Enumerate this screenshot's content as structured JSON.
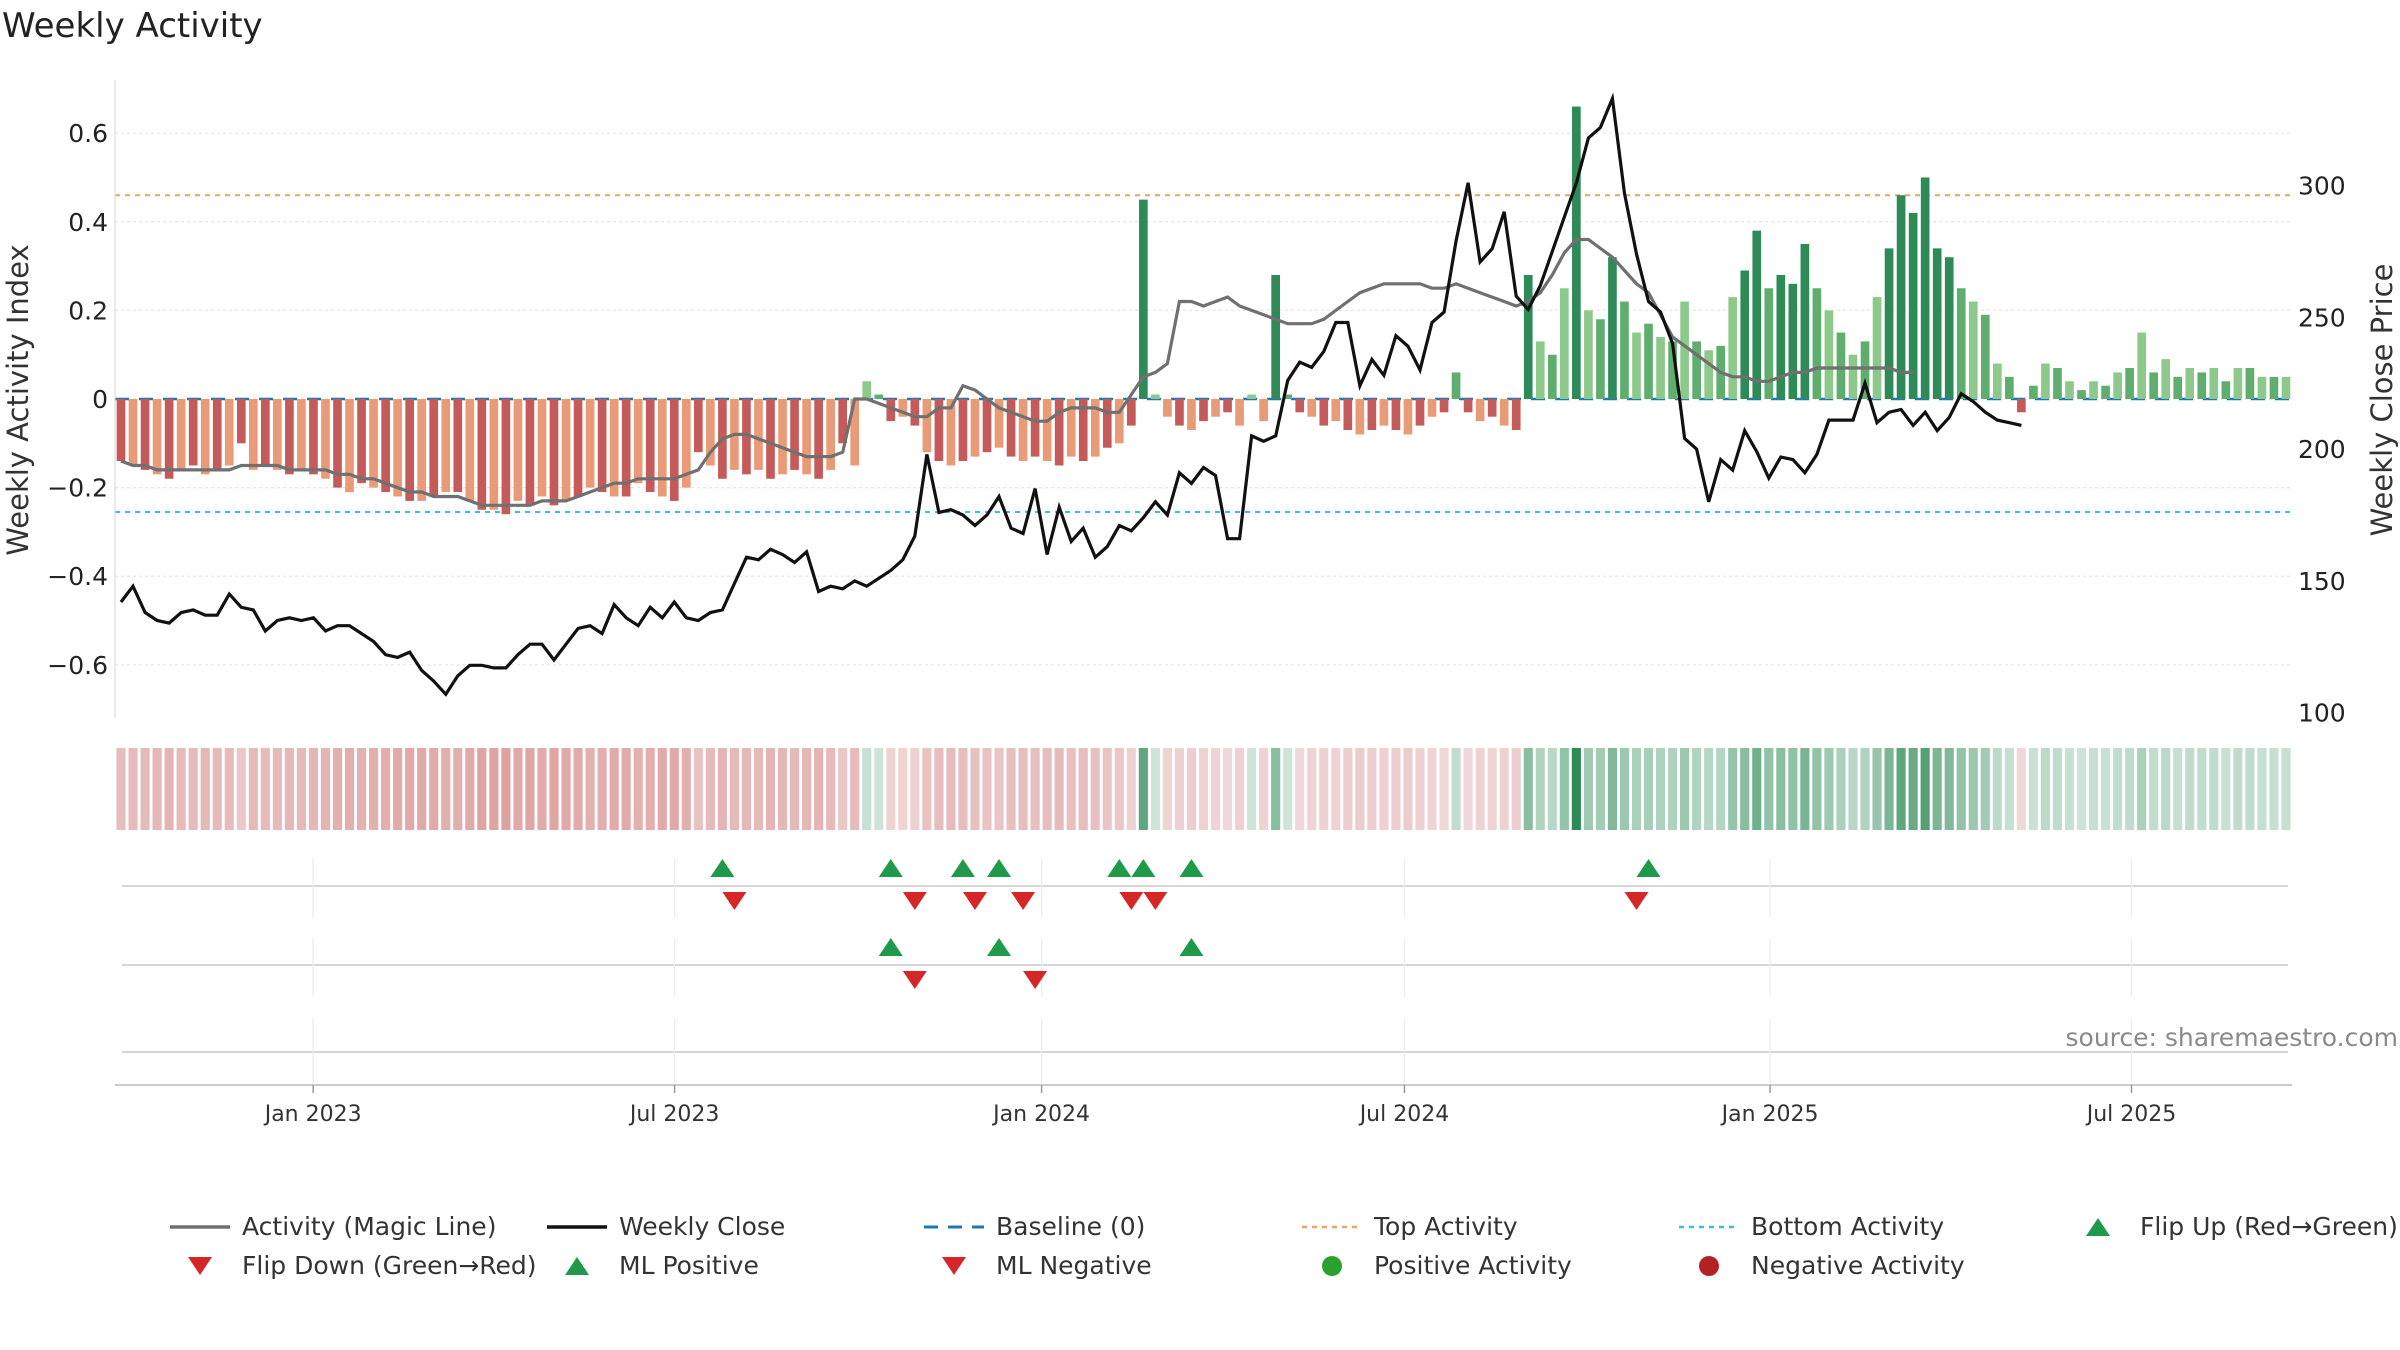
{
  "chart_data": {
    "type": "bar",
    "title": "Weekly Activity",
    "ylabel": "Weekly Activity Index",
    "y2label": "Weekly Close Price",
    "ylim": [
      -0.72,
      0.72
    ],
    "y2lim": [
      98,
      340
    ],
    "y_ticks": [
      -0.6,
      -0.4,
      -0.2,
      0,
      0.2,
      0.4,
      0.6
    ],
    "y_tick_labels": [
      "−0.6",
      "−0.4",
      "−0.2",
      "0",
      "0.2",
      "0.4",
      "0.6"
    ],
    "y2_ticks": [
      100,
      150,
      200,
      250,
      300
    ],
    "y2_tick_labels": [
      "100",
      "150",
      "200",
      "250",
      "300"
    ],
    "x_range_weeks": [
      0,
      156
    ],
    "x_ticks": [
      {
        "label": "Jan 2023",
        "week": 14.2
      },
      {
        "label": "Jul 2023",
        "week": 40.1
      },
      {
        "label": "Jan 2024",
        "week": 66.4
      },
      {
        "label": "Jul 2024",
        "week": 92.4
      },
      {
        "label": "Jan 2025",
        "week": 118.6
      },
      {
        "label": "Jul 2025",
        "week": 144.5
      }
    ],
    "top_activity": 0.46,
    "bottom_activity": -0.255,
    "baseline": 0,
    "activity": [
      -0.14,
      -0.15,
      -0.16,
      -0.17,
      -0.18,
      -0.16,
      -0.15,
      -0.17,
      -0.16,
      -0.15,
      -0.1,
      -0.16,
      -0.15,
      -0.16,
      -0.17,
      -0.16,
      -0.17,
      -0.18,
      -0.2,
      -0.21,
      -0.19,
      -0.2,
      -0.21,
      -0.22,
      -0.23,
      -0.23,
      -0.22,
      -0.21,
      -0.21,
      -0.23,
      -0.25,
      -0.25,
      -0.26,
      -0.23,
      -0.24,
      -0.22,
      -0.24,
      -0.23,
      -0.22,
      -0.2,
      -0.21,
      -0.22,
      -0.22,
      -0.19,
      -0.21,
      -0.22,
      -0.23,
      -0.2,
      -0.12,
      -0.15,
      -0.18,
      -0.16,
      -0.17,
      -0.16,
      -0.18,
      -0.17,
      -0.16,
      -0.17,
      -0.18,
      -0.16,
      -0.1,
      -0.15,
      0.04,
      0.01,
      -0.05,
      -0.04,
      -0.06,
      -0.12,
      -0.14,
      -0.15,
      -0.14,
      -0.13,
      -0.12,
      -0.11,
      -0.13,
      -0.14,
      -0.13,
      -0.14,
      -0.15,
      -0.13,
      -0.14,
      -0.13,
      -0.11,
      -0.1,
      -0.06,
      0.45,
      0.01,
      -0.04,
      -0.06,
      -0.07,
      -0.05,
      -0.04,
      -0.03,
      -0.06,
      0.01,
      -0.05,
      0.28,
      0.01,
      -0.03,
      -0.04,
      -0.06,
      -0.05,
      -0.07,
      -0.08,
      -0.07,
      -0.06,
      -0.07,
      -0.08,
      -0.06,
      -0.04,
      -0.03,
      0.06,
      -0.03,
      -0.05,
      -0.04,
      -0.06,
      -0.07,
      0.28,
      0.13,
      0.1,
      0.25,
      0.66,
      0.2,
      0.18,
      0.32,
      0.22,
      0.15,
      0.17,
      0.14,
      0.13,
      0.22,
      0.13,
      0.11,
      0.12,
      0.23,
      0.29,
      0.38,
      0.25,
      0.28,
      0.26,
      0.35,
      0.25,
      0.2,
      0.15,
      0.1,
      0.13,
      0.23,
      0.34,
      0.46,
      0.42,
      0.5,
      0.34,
      0.32,
      0.25,
      0.22,
      0.19,
      0.08,
      0.05,
      -0.03,
      0.03,
      0.08,
      0.07,
      0.04,
      0.02,
      0.04,
      0.03,
      0.06,
      0.07,
      0.15,
      0.06,
      0.09,
      0.05,
      0.07,
      0.06,
      0.07,
      0.04,
      0.07,
      0.07,
      0.05,
      0.05,
      0.05
    ],
    "magic_line": [
      -0.14,
      -0.15,
      -0.15,
      -0.16,
      -0.16,
      -0.16,
      -0.16,
      -0.16,
      -0.16,
      -0.16,
      -0.15,
      -0.15,
      -0.15,
      -0.15,
      -0.16,
      -0.16,
      -0.16,
      -0.16,
      -0.17,
      -0.17,
      -0.18,
      -0.18,
      -0.19,
      -0.2,
      -0.21,
      -0.21,
      -0.22,
      -0.22,
      -0.22,
      -0.23,
      -0.24,
      -0.24,
      -0.24,
      -0.24,
      -0.24,
      -0.23,
      -0.23,
      -0.23,
      -0.22,
      -0.21,
      -0.2,
      -0.19,
      -0.19,
      -0.18,
      -0.18,
      -0.18,
      -0.18,
      -0.17,
      -0.16,
      -0.12,
      -0.09,
      -0.08,
      -0.08,
      -0.09,
      -0.1,
      -0.11,
      -0.12,
      -0.13,
      -0.13,
      -0.13,
      -0.12,
      0.0,
      0.0,
      -0.01,
      -0.02,
      -0.03,
      -0.04,
      -0.04,
      -0.02,
      -0.02,
      0.03,
      0.02,
      0.0,
      -0.02,
      -0.03,
      -0.04,
      -0.05,
      -0.05,
      -0.03,
      -0.02,
      -0.02,
      -0.02,
      -0.03,
      -0.03,
      0.01,
      0.05,
      0.06,
      0.08,
      0.22,
      0.22,
      0.21,
      0.22,
      0.23,
      0.21,
      0.2,
      0.19,
      0.18,
      0.17,
      0.17,
      0.17,
      0.18,
      0.2,
      0.22,
      0.24,
      0.25,
      0.26,
      0.26,
      0.26,
      0.26,
      0.25,
      0.25,
      0.26,
      0.25,
      0.24,
      0.23,
      0.22,
      0.21,
      0.22,
      0.24,
      0.28,
      0.33,
      0.36,
      0.36,
      0.34,
      0.32,
      0.29,
      0.26,
      0.24,
      0.19,
      0.14,
      0.12,
      0.1,
      0.08,
      0.06,
      0.05,
      0.05,
      0.04,
      0.04,
      0.05,
      0.06,
      0.06,
      0.07,
      0.07,
      0.07,
      0.07,
      0.07,
      0.07,
      0.07,
      0.06,
      0.06
    ],
    "weekly_close": [
      142,
      148,
      138,
      135,
      134,
      138,
      139,
      137,
      137,
      145,
      140,
      139,
      131,
      135,
      136,
      135,
      136,
      131,
      133,
      133,
      130,
      127,
      122,
      121,
      123,
      116,
      112,
      107,
      114,
      118,
      118,
      117,
      117,
      122,
      126,
      126,
      120,
      126,
      132,
      133,
      130,
      141,
      136,
      133,
      140,
      136,
      142,
      136,
      135,
      138,
      139,
      149,
      159,
      158,
      162,
      160,
      157,
      161,
      146,
      148,
      147,
      150,
      148,
      151,
      154,
      158,
      167,
      198,
      176,
      177,
      175,
      171,
      175,
      182,
      170,
      168,
      185,
      160,
      178,
      165,
      170,
      159,
      163,
      171,
      169,
      174,
      180,
      175,
      191,
      187,
      193,
      190,
      166,
      166,
      205,
      203,
      205,
      226,
      233,
      231,
      237,
      248,
      248,
      224,
      234,
      228,
      243,
      239,
      230,
      248,
      252,
      279,
      301,
      271,
      276,
      290,
      258,
      253,
      262,
      275,
      288,
      301,
      318,
      322,
      333,
      297,
      274,
      256,
      252,
      240,
      204,
      200,
      180,
      196,
      192,
      207,
      199,
      189,
      197,
      196,
      191,
      198,
      211,
      211,
      211,
      225,
      210,
      214,
      215,
      209,
      214,
      207,
      212,
      221,
      218,
      214,
      211,
      210,
      209
    ]
  },
  "signals": {
    "flip_up_weeks": [
      50,
      64,
      70,
      73,
      83,
      85,
      89,
      127
    ],
    "flip_down_weeks": [
      51,
      66,
      71,
      75,
      84,
      86,
      126
    ],
    "ml_positive_weeks": [
      64,
      73,
      89
    ],
    "ml_negative_weeks": [
      66,
      76
    ]
  },
  "colors": {
    "pos_dark": "#2e8b57",
    "pos_mid": "#5fae6e",
    "pos_light": "#8dc98a",
    "neg_dark": "#c55a5a",
    "neg_light": "#e99a76",
    "magic_line": "#707070",
    "close": "#111111",
    "baseline": "#1f77b4",
    "top": "#f0a35e",
    "bottom": "#2fc4d9",
    "flip_up": "#1f9a4a",
    "flip_down": "#d62728",
    "grid": "#e6e6e6"
  },
  "source": "source: sharemaestro.com",
  "legend": [
    {
      "label": "Activity (Magic Line)",
      "kind": "line-gray"
    },
    {
      "label": "Weekly Close",
      "kind": "line-black"
    },
    {
      "label": "Baseline (0)",
      "kind": "dash-blue"
    },
    {
      "label": "Top Activity",
      "kind": "dot-orange"
    },
    {
      "label": "Bottom Activity",
      "kind": "dot-cyan"
    },
    {
      "label": "Flip Up (Red→Green)",
      "kind": "tri-up"
    },
    {
      "label": "Flip Down (Green→Red)",
      "kind": "tri-down"
    },
    {
      "label": "ML Positive",
      "kind": "tri-up"
    },
    {
      "label": "ML Negative",
      "kind": "tri-down"
    },
    {
      "label": "Positive Activity",
      "kind": "circle-green"
    },
    {
      "label": "Negative Activity",
      "kind": "circle-red"
    }
  ]
}
